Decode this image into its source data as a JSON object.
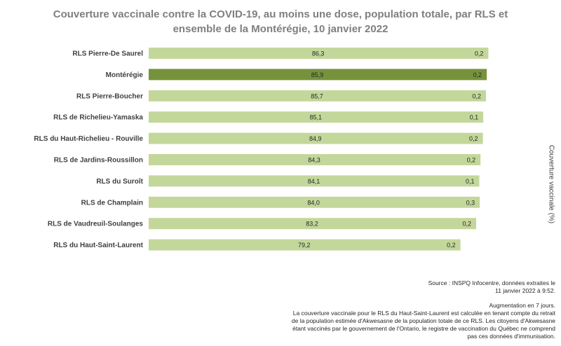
{
  "chart_data": {
    "type": "bar",
    "orientation": "horizontal",
    "title": "Couverture vaccinale contre la COVID-19, au moins une dose, population totale, par RLS et ensemble de la Montérégie, 10 janvier 2022",
    "title_lines": [
      "Couverture vaccinale contre la COVID-19, au moins une dose, population totale, par RLS et",
      "ensemble de la Montérégie, 10 janvier 2022"
    ],
    "ylabel": "Couverture vaccinale (%)",
    "categories": [
      "RLS Pierre-De Saurel",
      "Montérégie",
      "RLS Pierre-Boucher",
      "RLS de Richelieu-Yamaska",
      "RLS du Haut-Richelieu - Rouville",
      "RLS de Jardins-Roussillon",
      "RLS du Suroît",
      "RLS de Champlain",
      "RLS de Vaudreuil-Soulanges",
      "RLS du Haut-Saint-Laurent"
    ],
    "series": [
      {
        "values": [
          86.3,
          85.9,
          85.7,
          85.1,
          84.9,
          84.3,
          84.1,
          84.0,
          83.2,
          79.2
        ],
        "labels": [
          "86,3",
          "85,9",
          "85,7",
          "85,1",
          "84,9",
          "84,3",
          "84,1",
          "84,0",
          "83,2",
          "79,2"
        ]
      },
      {
        "values": [
          0.2,
          0.2,
          0.2,
          0.1,
          0.2,
          0.2,
          0.1,
          0.3,
          0.2,
          0.2
        ],
        "labels": [
          "0,2",
          "0,2",
          "0,2",
          "0,1",
          "0,2",
          "0,2",
          "0,1",
          "0,3",
          "0,2",
          "0,2"
        ]
      }
    ],
    "highlight_category": "Montérégie",
    "colors": {
      "bar": "#c4d79b",
      "highlight": "#76933c"
    },
    "grid": false,
    "legend": "none"
  },
  "source_lines": [
    "Source : INSPQ Infocentre, données extraites le",
    "11 janvier 2022 à  9:52."
  ],
  "footnote_lines": [
    "Augmentation en 7 jours.",
    "La couverture vaccinale pour le RLS du Haut-Saint-Laurent est calculée en tenant compte du retrait",
    "de la population estimée d'Akwesasne de la population totale de ce RLS. Les citoyens d'Akwesasne",
    "étant vaccinés par le gouvernement de l'Ontario, le registre de vaccination du Québec ne comprend",
    "pas ces données d'immunisation."
  ]
}
